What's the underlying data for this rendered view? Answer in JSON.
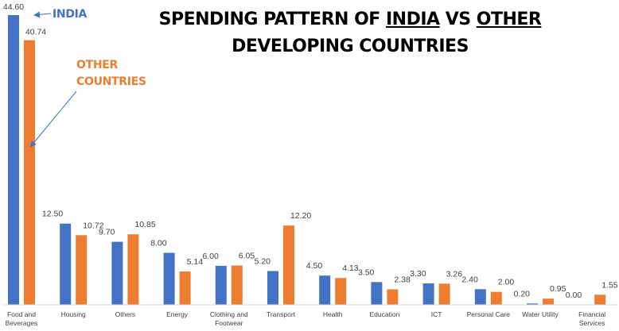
{
  "chart_data": {
    "type": "bar",
    "title": {
      "line1_prefix": "SPENDING PATTERN OF ",
      "india": "INDIA",
      "vs": " VS ",
      "other": "OTHER",
      "line2": "DEVELOPING COUNTRIES"
    },
    "xlabel": "",
    "ylabel": "",
    "ylim": [
      0,
      46
    ],
    "grid": false,
    "categories": [
      [
        "Food and",
        "Beverages"
      ],
      [
        "Housing"
      ],
      [
        "Others"
      ],
      [
        "Energy"
      ],
      [
        "Clothing and",
        "Footwear"
      ],
      [
        "Transport"
      ],
      [
        "Health"
      ],
      [
        "Education"
      ],
      [
        "ICT"
      ],
      [
        "Personal Care"
      ],
      [
        "Water Utility"
      ],
      [
        "Financial",
        "Services"
      ]
    ],
    "series": [
      {
        "name": "INDIA",
        "color": "#4472C4",
        "values": [
          44.6,
          12.5,
          9.7,
          8.0,
          6.0,
          5.2,
          4.5,
          3.5,
          3.3,
          2.4,
          0.2,
          0.0
        ],
        "labels": [
          "44.60",
          "12.50",
          "9.70",
          "8.00",
          "6.00",
          "5.20",
          "4.50",
          "3.50",
          "3.30",
          "2.40",
          "0.20",
          "0.00"
        ]
      },
      {
        "name": "OTHER COUNTRIES",
        "color": "#ED7D31",
        "values": [
          40.74,
          10.72,
          10.85,
          5.14,
          6.05,
          12.2,
          4.13,
          2.38,
          3.26,
          2.0,
          0.95,
          1.55
        ],
        "labels": [
          "40.74",
          "10.72",
          "10.85",
          "5.14",
          "6.05",
          "12.20",
          "4.13",
          "2.38",
          "3.26",
          "2.00",
          "0.95",
          "1.55"
        ]
      }
    ],
    "annotations": {
      "india": "INDIA",
      "other_line1": "OTHER",
      "other_line2": "COUNTRIES"
    }
  }
}
